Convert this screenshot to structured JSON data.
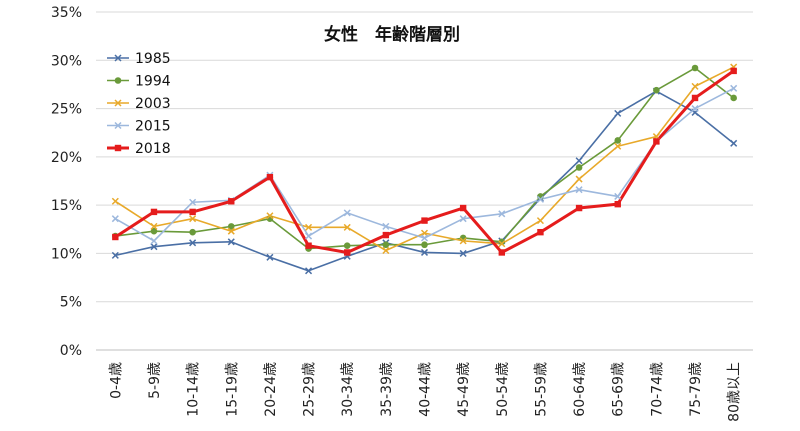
{
  "chart_data": {
    "type": "line",
    "title": "女性　年齢階層別",
    "xlabel": "",
    "ylabel": "",
    "ylim": [
      0,
      35
    ],
    "yticks": [
      "0%",
      "5%",
      "10%",
      "15%",
      "20%",
      "25%",
      "30%",
      "35%"
    ],
    "ytick_values": [
      0,
      5,
      10,
      15,
      20,
      25,
      30,
      35
    ],
    "grid": "horizontal",
    "legend_position": "top-left",
    "categories": [
      "0-4歳",
      "5-9歳",
      "10-14歳",
      "15-19歳",
      "20-24歳",
      "25-29歳",
      "30-34歳",
      "35-39歳",
      "40-44歳",
      "45-49歳",
      "50-54歳",
      "55-59歳",
      "60-64歳",
      "65-69歳",
      "70-74歳",
      "75-79歳",
      "80歳以上"
    ],
    "series": [
      {
        "name": "1985",
        "color": "#4a6fa5",
        "marker": "x",
        "width": 1.6,
        "values": [
          9.8,
          10.7,
          11.1,
          11.2,
          9.6,
          8.2,
          9.7,
          11.1,
          10.1,
          10.0,
          11.3,
          15.7,
          19.6,
          24.5,
          26.8,
          24.6,
          21.4
        ]
      },
      {
        "name": "1994",
        "color": "#6a9a3a",
        "marker": "circle",
        "width": 1.6,
        "values": [
          11.8,
          12.3,
          12.2,
          12.8,
          13.6,
          10.5,
          10.8,
          10.9,
          10.9,
          11.6,
          11.2,
          15.9,
          18.9,
          21.7,
          26.9,
          29.2,
          26.1
        ]
      },
      {
        "name": "2003",
        "color": "#e8a92a",
        "marker": "x",
        "width": 1.6,
        "values": [
          15.4,
          12.8,
          13.6,
          12.3,
          13.9,
          12.7,
          12.7,
          10.3,
          12.1,
          11.3,
          11.0,
          13.4,
          17.7,
          21.1,
          22.1,
          27.3,
          29.3
        ]
      },
      {
        "name": "2015",
        "color": "#9db8dd",
        "marker": "x",
        "width": 1.6,
        "values": [
          13.6,
          11.3,
          15.3,
          15.5,
          18.1,
          11.8,
          14.2,
          12.8,
          11.6,
          13.6,
          14.1,
          15.6,
          16.6,
          15.9,
          21.6,
          25.0,
          27.1
        ]
      },
      {
        "name": "2018",
        "color": "#e51c1c",
        "marker": "square",
        "width": 3,
        "values": [
          11.7,
          14.3,
          14.3,
          15.4,
          17.9,
          10.8,
          10.1,
          11.9,
          13.4,
          14.7,
          10.1,
          12.2,
          14.7,
          15.1,
          21.6,
          26.1,
          28.9
        ]
      }
    ]
  }
}
